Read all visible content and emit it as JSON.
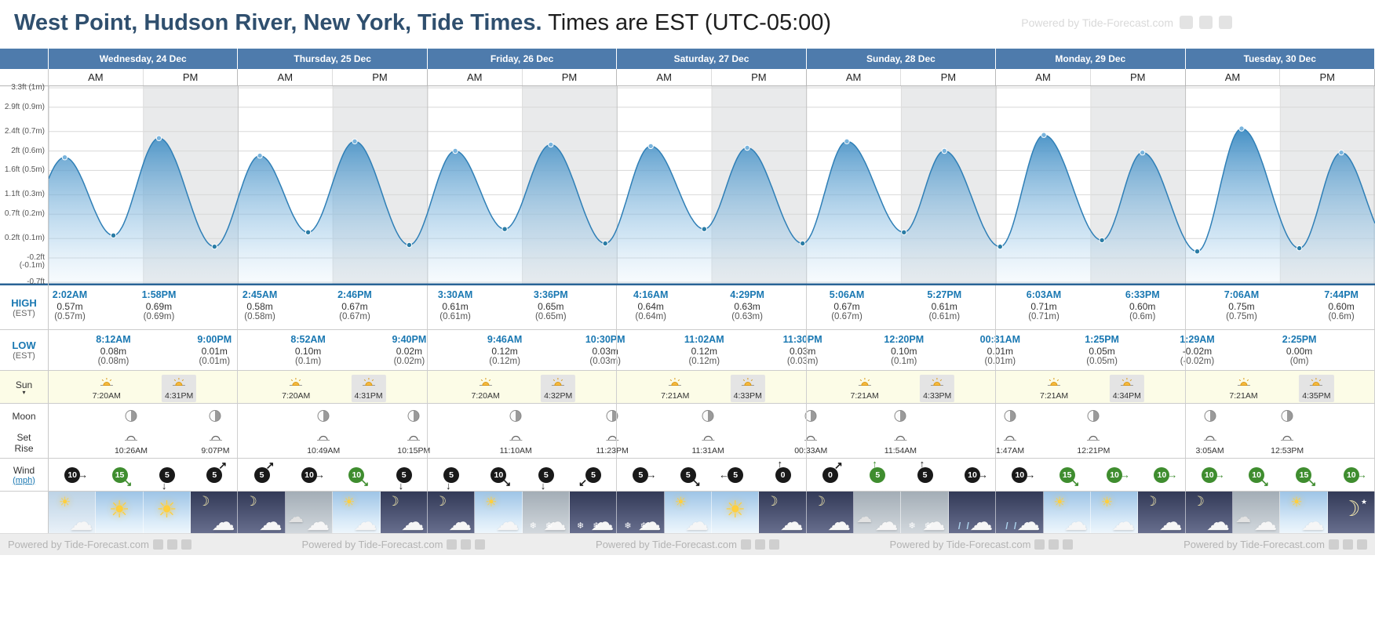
{
  "page": {
    "title_main": "West Point, Hudson River, New York, Tide Times.",
    "title_sub": " Times are EST (UTC-05:00)",
    "powered_by": "Powered by Tide-Forecast.com"
  },
  "halves": [
    "AM",
    "PM"
  ],
  "axis": {
    "labels": [
      "3.3ft (1m)",
      "2.9ft (0.9m)",
      "2.4ft (0.7m)",
      "2ft (0.6m)",
      "1.6ft (0.5m)",
      "1.1ft (0.3m)",
      "0.7ft (0.2m)",
      "0.2ft (0.1m)",
      "-0.2ft (-0.1m)",
      "-0.7ft (-0.2m)"
    ],
    "ft": [
      3.3,
      2.9,
      2.4,
      2.0,
      1.6,
      1.1,
      0.7,
      0.2,
      -0.2,
      -0.7
    ]
  },
  "row_labels": {
    "high": "HIGH",
    "high_sub": "(EST)",
    "low": "LOW",
    "low_sub": "(EST)",
    "sun": "Sun",
    "moon": "Moon",
    "set": "Set",
    "rise": "Rise",
    "wind": "Wind",
    "wind_unit": "(mph)"
  },
  "icons": {
    "sun_expand": "▾"
  },
  "colors": {
    "header_blue": "#4e7bac",
    "tide_blue": "#2f7fb6",
    "wind_dark": "#191919",
    "wind_green": "#3f8d2f"
  },
  "days": [
    {
      "name": "Wednesday, 24 Dec",
      "high": [
        {
          "time": "2:02AM",
          "v": "0.57m",
          "p": "(0.57m)"
        },
        {
          "time": "1:58PM",
          "v": "0.69m",
          "p": "(0.69m)"
        }
      ],
      "low": [
        {
          "time": "8:12AM",
          "v": "0.08m",
          "p": "(0.08m)"
        },
        {
          "time": "9:00PM",
          "v": "0.01m",
          "p": "(0.01m)"
        }
      ],
      "sun": {
        "rise": "7:20AM",
        "set": "4:31PM"
      },
      "moon": [
        {
          "kind": "set",
          "time": "10:26AM"
        },
        {
          "kind": "rise",
          "time": "9:07PM"
        }
      ],
      "wind": [
        {
          "v": "10",
          "dir": "→",
          "c": "dark"
        },
        {
          "v": "15",
          "dir": "↘",
          "c": "green"
        },
        {
          "v": "5",
          "dir": "↓",
          "c": "dark"
        },
        {
          "v": "5",
          "dir": "↗",
          "c": "dark"
        }
      ],
      "weather": [
        "cloudy-day",
        "sunny",
        "sunny",
        "cloudy-night"
      ]
    },
    {
      "name": "Thursday, 25 Dec",
      "high": [
        {
          "time": "2:45AM",
          "v": "0.58m",
          "p": "(0.58m)"
        },
        {
          "time": "2:46PM",
          "v": "0.67m",
          "p": "(0.67m)"
        }
      ],
      "low": [
        {
          "time": "8:52AM",
          "v": "0.10m",
          "p": "(0.1m)"
        },
        {
          "time": "9:40PM",
          "v": "0.02m",
          "p": "(0.02m)"
        }
      ],
      "sun": {
        "rise": "7:20AM",
        "set": "4:31PM"
      },
      "moon": [
        {
          "kind": "set",
          "time": "10:49AM"
        },
        {
          "kind": "rise",
          "time": "10:15PM"
        }
      ],
      "wind": [
        {
          "v": "5",
          "dir": "↗",
          "c": "dark"
        },
        {
          "v": "10",
          "dir": "→",
          "c": "dark"
        },
        {
          "v": "10",
          "dir": "↘",
          "c": "green"
        },
        {
          "v": "5",
          "dir": "↓",
          "c": "dark"
        }
      ],
      "weather": [
        "cloudy-night",
        "overcast",
        "partly-sunny",
        "cloudy-night"
      ]
    },
    {
      "name": "Friday, 26 Dec",
      "high": [
        {
          "time": "3:30AM",
          "v": "0.61m",
          "p": "(0.61m)"
        },
        {
          "time": "3:36PM",
          "v": "0.65m",
          "p": "(0.65m)"
        }
      ],
      "low": [
        {
          "time": "9:46AM",
          "v": "0.12m",
          "p": "(0.12m)"
        },
        {
          "time": "10:30PM",
          "v": "0.03m",
          "p": "(0.03m)"
        }
      ],
      "sun": {
        "rise": "7:20AM",
        "set": "4:32PM"
      },
      "moon": [
        {
          "kind": "set",
          "time": "11:10AM"
        },
        {
          "kind": "rise",
          "time": "11:23PM"
        }
      ],
      "wind": [
        {
          "v": "5",
          "dir": "↓",
          "c": "dark"
        },
        {
          "v": "10",
          "dir": "↘",
          "c": "dark"
        },
        {
          "v": "5",
          "dir": "↓",
          "c": "dark"
        },
        {
          "v": "5",
          "dir": "↙",
          "c": "dark"
        }
      ],
      "weather": [
        "cloudy-night",
        "partly-sunny",
        "snow-day",
        "snow-night"
      ]
    },
    {
      "name": "Saturday, 27 Dec",
      "high": [
        {
          "time": "4:16AM",
          "v": "0.64m",
          "p": "(0.64m)"
        },
        {
          "time": "4:29PM",
          "v": "0.63m",
          "p": "(0.63m)"
        }
      ],
      "low": [
        {
          "time": "11:02AM",
          "v": "0.12m",
          "p": "(0.12m)"
        },
        {
          "time": "11:30PM",
          "v": "0.03m",
          "p": "(0.03m)"
        }
      ],
      "sun": {
        "rise": "7:21AM",
        "set": "4:33PM"
      },
      "moon": [
        {
          "kind": "set",
          "time": "11:31AM"
        }
      ],
      "wind": [
        {
          "v": "5",
          "dir": "→",
          "c": "dark"
        },
        {
          "v": "5",
          "dir": "↘",
          "c": "dark"
        },
        {
          "v": "5",
          "dir": "←",
          "c": "dark"
        },
        {
          "v": "0",
          "dir": "↑",
          "c": "dark"
        }
      ],
      "weather": [
        "snow-night",
        "partly-sunny",
        "sunny",
        "cloudy-night"
      ]
    },
    {
      "name": "Sunday, 28 Dec",
      "high": [
        {
          "time": "5:06AM",
          "v": "0.67m",
          "p": "(0.67m)"
        },
        {
          "time": "5:27PM",
          "v": "0.61m",
          "p": "(0.61m)"
        }
      ],
      "low": [
        {
          "time": "12:20PM",
          "v": "0.10m",
          "p": "(0.1m)"
        }
      ],
      "sun": {
        "rise": "7:21AM",
        "set": "4:33PM"
      },
      "moon": [
        {
          "kind": "rise",
          "time": "00:33AM"
        },
        {
          "kind": "set",
          "time": "11:54AM"
        }
      ],
      "wind": [
        {
          "v": "0",
          "dir": "↗",
          "c": "dark"
        },
        {
          "v": "5",
          "dir": "↑",
          "c": "green"
        },
        {
          "v": "5",
          "dir": "↑",
          "c": "dark"
        },
        {
          "v": "10",
          "dir": "→",
          "c": "dark"
        }
      ],
      "weather": [
        "cloudy-night",
        "overcast",
        "snow-day",
        "rain-night"
      ]
    },
    {
      "name": "Monday, 29 Dec",
      "high": [
        {
          "time": "6:03AM",
          "v": "0.71m",
          "p": "(0.71m)"
        },
        {
          "time": "6:33PM",
          "v": "0.60m",
          "p": "(0.6m)"
        }
      ],
      "low": [
        {
          "time": "00:31AM",
          "v": "0.01m",
          "p": "(0.01m)"
        },
        {
          "time": "1:25PM",
          "v": "0.05m",
          "p": "(0.05m)"
        }
      ],
      "sun": {
        "rise": "7:21AM",
        "set": "4:34PM"
      },
      "moon": [
        {
          "kind": "rise",
          "time": "1:47AM"
        },
        {
          "kind": "set",
          "time": "12:21PM"
        }
      ],
      "wind": [
        {
          "v": "10",
          "dir": "→",
          "c": "dark"
        },
        {
          "v": "15",
          "dir": "↘",
          "c": "green"
        },
        {
          "v": "10",
          "dir": "→",
          "c": "green"
        },
        {
          "v": "10",
          "dir": "→",
          "c": "green"
        }
      ],
      "weather": [
        "rain-night",
        "partly-sunny",
        "partly-sunny",
        "cloudy-night"
      ]
    },
    {
      "name": "Tuesday, 30 Dec",
      "high": [
        {
          "time": "7:06AM",
          "v": "0.75m",
          "p": "(0.75m)"
        },
        {
          "time": "7:44PM",
          "v": "0.60m",
          "p": "(0.6m)"
        }
      ],
      "low": [
        {
          "time": "1:29AM",
          "v": "-0.02m",
          "p": "(-0.02m)"
        },
        {
          "time": "2:25PM",
          "v": "0.00m",
          "p": "(0m)"
        }
      ],
      "sun": {
        "rise": "7:21AM",
        "set": "4:35PM"
      },
      "moon": [
        {
          "kind": "rise",
          "time": "3:05AM"
        },
        {
          "kind": "set",
          "time": "12:53PM"
        }
      ],
      "wind": [
        {
          "v": "10",
          "dir": "→",
          "c": "green"
        },
        {
          "v": "10",
          "dir": "↘",
          "c": "green"
        },
        {
          "v": "15",
          "dir": "↘",
          "c": "green"
        },
        {
          "v": "10",
          "dir": "→",
          "c": "green"
        }
      ],
      "weather": [
        "cloudy-night",
        "overcast",
        "partly-sunny",
        "clear-night"
      ]
    }
  ],
  "footer": {
    "text": "Powered by Tide-Forecast.com"
  }
}
